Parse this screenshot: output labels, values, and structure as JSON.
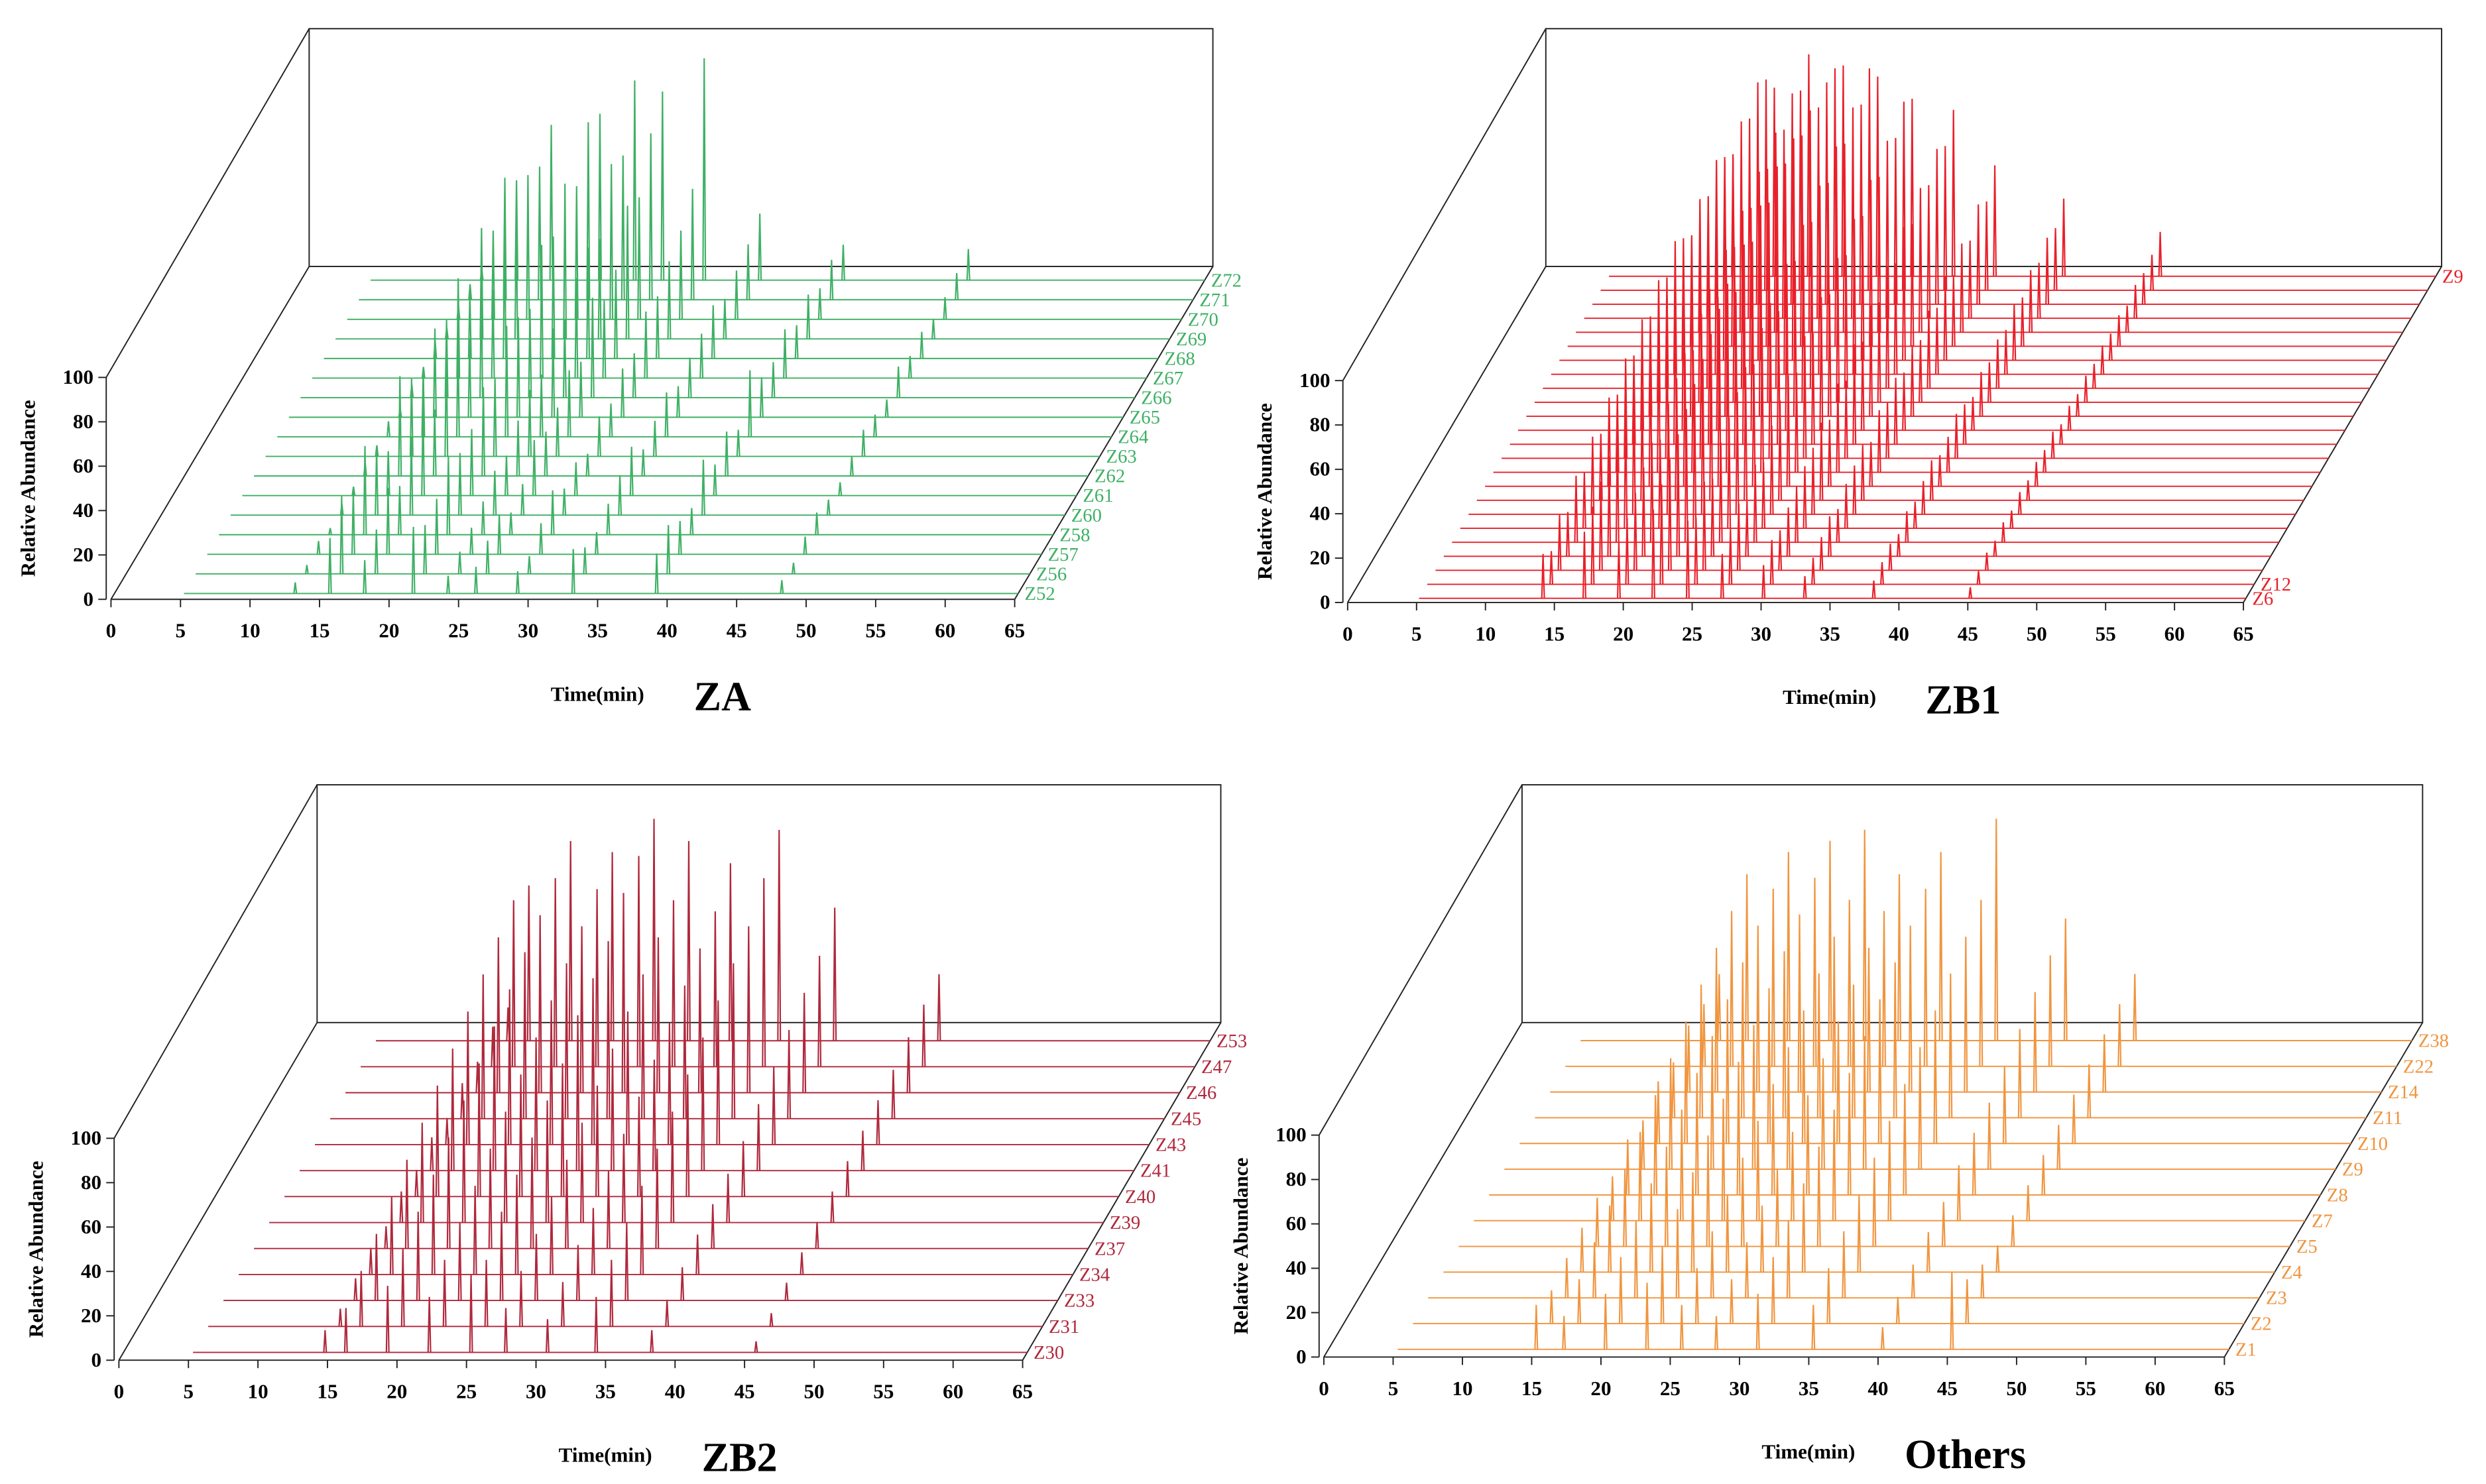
{
  "chart_data": [
    {
      "type": "waterfall",
      "title": "ZA",
      "x_label": "Time(min)",
      "y_label": "Relative Abundance",
      "color": "#3fb065",
      "xlim": [
        0,
        65
      ],
      "xticks": [
        0,
        5,
        10,
        15,
        20,
        25,
        30,
        35,
        40,
        45,
        50,
        55,
        60,
        65
      ],
      "ylim": [
        0,
        100
      ],
      "yticks": [
        0,
        20,
        40,
        60,
        80,
        100
      ],
      "x": [
        13,
        15.5,
        18,
        21.5,
        24,
        26,
        29,
        33,
        39,
        48
      ],
      "series": [
        {
          "name": "Z52",
          "values": [
            5,
            25,
            15,
            30,
            8,
            12,
            10,
            20,
            18,
            6
          ]
        },
        {
          "name": "Z56",
          "values": [
            4,
            35,
            20,
            22,
            10,
            15,
            8,
            12,
            22,
            5
          ]
        },
        {
          "name": "Z57",
          "values": [
            6,
            28,
            30,
            25,
            12,
            18,
            14,
            10,
            15,
            8
          ]
        },
        {
          "name": "Z58",
          "values": [
            3,
            40,
            22,
            35,
            15,
            10,
            20,
            14,
            12,
            10
          ]
        },
        {
          "name": "Z60",
          "values": [
            5,
            30,
            35,
            28,
            20,
            14,
            12,
            18,
            25,
            7
          ]
        },
        {
          "name": "Z61",
          "values": [
            4,
            20,
            40,
            30,
            18,
            25,
            15,
            22,
            14,
            6
          ]
        },
        {
          "name": "Z62",
          "values": [
            6,
            45,
            30,
            40,
            25,
            20,
            10,
            12,
            20,
            9
          ]
        },
        {
          "name": "Z63",
          "values": [
            5,
            35,
            50,
            35,
            30,
            22,
            18,
            16,
            12,
            12
          ]
        },
        {
          "name": "Z64",
          "values": [
            7,
            30,
            45,
            50,
            28,
            30,
            15,
            20,
            30,
            10
          ]
        },
        {
          "name": "Z65",
          "values": [
            4,
            40,
            35,
            45,
            40,
            25,
            22,
            14,
            18,
            8
          ]
        },
        {
          "name": "Z66",
          "values": [
            6,
            35,
            55,
            40,
            35,
            45,
            20,
            18,
            16,
            14
          ]
        },
        {
          "name": "Z67",
          "values": [
            5,
            45,
            40,
            60,
            45,
            35,
            30,
            20,
            22,
            10
          ]
        },
        {
          "name": "Z68",
          "values": [
            8,
            30,
            60,
            55,
            50,
            40,
            28,
            24,
            15,
            12
          ]
        },
        {
          "name": "Z69",
          "values": [
            5,
            50,
            55,
            70,
            45,
            60,
            35,
            18,
            20,
            9
          ]
        },
        {
          "name": "Z70",
          "values": [
            6,
            40,
            65,
            60,
            70,
            55,
            40,
            22,
            14,
            10
          ]
        },
        {
          "name": "Z71",
          "values": [
            7,
            55,
            60,
            80,
            65,
            75,
            50,
            25,
            18,
            12
          ]
        },
        {
          "name": "Z72",
          "values": [
            5,
            45,
            70,
            75,
            90,
            85,
            100,
            30,
            16,
            14
          ]
        }
      ]
    },
    {
      "type": "waterfall",
      "title": "ZB1",
      "x_label": "Time(min)",
      "y_label": "Relative Abundance",
      "color": "#e8202a",
      "xlim": [
        0,
        65
      ],
      "xticks": [
        0,
        5,
        10,
        15,
        20,
        25,
        30,
        35,
        40,
        45,
        50,
        55,
        60,
        65
      ],
      "ylim": [
        0,
        100
      ],
      "yticks": [
        0,
        20,
        40,
        60,
        80,
        100
      ],
      "x": [
        14,
        17,
        19.5,
        22,
        24.5,
        27,
        30,
        33,
        38,
        45
      ],
      "series": [
        {
          "name": "Z6",
          "values": [
            20,
            30,
            25,
            40,
            35,
            20,
            15,
            10,
            8,
            5
          ]
        },
        {
          "name": "Z12",
          "values": [
            15,
            35,
            30,
            45,
            30,
            25,
            20,
            12,
            10,
            6
          ]
        },
        {
          "name": null,
          "values": [
            25,
            40,
            35,
            50,
            40,
            30,
            18,
            15,
            12,
            8
          ]
        },
        {
          "name": null,
          "values": [
            20,
            45,
            40,
            55,
            35,
            25,
            22,
            18,
            10,
            7
          ]
        },
        {
          "name": null,
          "values": [
            30,
            50,
            45,
            60,
            45,
            35,
            25,
            15,
            14,
            9
          ]
        },
        {
          "name": null,
          "values": [
            25,
            55,
            40,
            65,
            50,
            30,
            28,
            20,
            12,
            8
          ]
        },
        {
          "name": null,
          "values": [
            35,
            60,
            50,
            70,
            55,
            40,
            30,
            22,
            15,
            10
          ]
        },
        {
          "name": null,
          "values": [
            30,
            50,
            55,
            75,
            60,
            45,
            35,
            25,
            18,
            9
          ]
        },
        {
          "name": null,
          "values": [
            40,
            65,
            60,
            80,
            55,
            50,
            30,
            20,
            14,
            11
          ]
        },
        {
          "name": null,
          "values": [
            35,
            70,
            55,
            85,
            65,
            45,
            40,
            28,
            16,
            10
          ]
        },
        {
          "name": null,
          "values": [
            45,
            60,
            65,
            75,
            70,
            55,
            35,
            25,
            20,
            12
          ]
        },
        {
          "name": null,
          "values": [
            40,
            75,
            70,
            90,
            60,
            50,
            45,
            30,
            18,
            9
          ]
        },
        {
          "name": null,
          "values": [
            50,
            70,
            60,
            85,
            75,
            60,
            40,
            26,
            15,
            11
          ]
        },
        {
          "name": null,
          "values": [
            45,
            80,
            75,
            95,
            70,
            55,
            50,
            32,
            20,
            10
          ]
        },
        {
          "name": null,
          "values": [
            55,
            75,
            70,
            90,
            80,
            65,
            45,
            28,
            18,
            12
          ]
        },
        {
          "name": null,
          "values": [
            50,
            85,
            80,
            100,
            75,
            60,
            55,
            35,
            22,
            11
          ]
        },
        {
          "name": null,
          "values": [
            60,
            80,
            75,
            95,
            85,
            70,
            50,
            30,
            20,
            13
          ]
        },
        {
          "name": null,
          "values": [
            55,
            90,
            85,
            100,
            80,
            65,
            60,
            38,
            25,
            12
          ]
        },
        {
          "name": null,
          "values": [
            50,
            85,
            80,
            95,
            90,
            75,
            55,
            32,
            22,
            14
          ]
        },
        {
          "name": null,
          "values": [
            60,
            95,
            90,
            100,
            85,
            70,
            65,
            40,
            28,
            12
          ]
        },
        {
          "name": null,
          "values": [
            55,
            90,
            85,
            95,
            95,
            80,
            60,
            35,
            25,
            15
          ]
        },
        {
          "name": null,
          "values": [
            65,
            100,
            95,
            100,
            90,
            75,
            70,
            45,
            30,
            14
          ]
        },
        {
          "name": null,
          "values": [
            60,
            95,
            90,
            100,
            100,
            85,
            65,
            40,
            28,
            16
          ]
        },
        {
          "name": "Z9",
          "values": [
            55,
            85,
            100,
            95,
            90,
            80,
            75,
            50,
            35,
            20
          ]
        }
      ]
    },
    {
      "type": "waterfall",
      "title": "ZB2",
      "x_label": "Time(min)",
      "y_label": "Relative Abundance",
      "color": "#b0283c",
      "xlim": [
        0,
        65
      ],
      "xticks": [
        0,
        5,
        10,
        15,
        20,
        25,
        30,
        35,
        40,
        45,
        50,
        55,
        60,
        65
      ],
      "ylim": [
        0,
        100
      ],
      "yticks": [
        0,
        20,
        40,
        60,
        80,
        100
      ],
      "x": [
        14.5,
        16,
        19,
        22,
        25,
        27.5,
        30.5,
        34,
        38,
        45.5
      ],
      "series": [
        {
          "name": "Z30",
          "values": [
            10,
            20,
            30,
            25,
            35,
            20,
            15,
            25,
            10,
            5
          ]
        },
        {
          "name": "Z31",
          "values": [
            8,
            25,
            35,
            30,
            30,
            25,
            20,
            30,
            12,
            6
          ]
        },
        {
          "name": "Z33",
          "values": [
            10,
            30,
            40,
            35,
            40,
            30,
            25,
            35,
            15,
            8
          ]
        },
        {
          "name": "Z34",
          "values": [
            12,
            35,
            45,
            40,
            45,
            35,
            30,
            40,
            18,
            10
          ]
        },
        {
          "name": "Z37",
          "values": [
            10,
            40,
            50,
            45,
            50,
            40,
            35,
            45,
            20,
            12
          ]
        },
        {
          "name": "Z39",
          "values": [
            14,
            45,
            55,
            50,
            55,
            45,
            40,
            50,
            22,
            14
          ]
        },
        {
          "name": "Z40",
          "values": [
            12,
            50,
            60,
            55,
            60,
            50,
            45,
            55,
            25,
            16
          ]
        },
        {
          "name": "Z41",
          "values": [
            15,
            55,
            65,
            60,
            70,
            55,
            50,
            60,
            30,
            18
          ]
        },
        {
          "name": "Z43",
          "values": [
            12,
            60,
            70,
            65,
            75,
            60,
            55,
            65,
            35,
            20
          ]
        },
        {
          "name": "Z45",
          "values": [
            16,
            65,
            75,
            70,
            80,
            65,
            60,
            70,
            40,
            22
          ]
        },
        {
          "name": "Z46",
          "values": [
            14,
            70,
            80,
            75,
            90,
            70,
            65,
            75,
            45,
            25
          ]
        },
        {
          "name": "Z47",
          "values": [
            18,
            75,
            85,
            80,
            95,
            75,
            70,
            85,
            50,
            28
          ]
        },
        {
          "name": "Z53",
          "values": [
            15,
            70,
            90,
            85,
            100,
            90,
            80,
            95,
            60,
            30
          ]
        }
      ]
    },
    {
      "type": "waterfall",
      "title": "Others",
      "x_label": "Time(min)",
      "y_label": "Relative Abundance",
      "color": "#f0953f",
      "xlim": [
        0,
        65
      ],
      "xticks": [
        0,
        5,
        10,
        15,
        20,
        25,
        30,
        35,
        40,
        45,
        50,
        55,
        60,
        65
      ],
      "ylim": [
        0,
        100
      ],
      "yticks": [
        0,
        20,
        40,
        60,
        80,
        100
      ],
      "x": [
        15,
        17,
        20,
        23,
        25.5,
        28,
        31,
        35,
        40,
        45
      ],
      "series": [
        {
          "name": "Z1",
          "values": [
            20,
            15,
            25,
            30,
            20,
            15,
            25,
            20,
            10,
            35
          ]
        },
        {
          "name": "Z2",
          "values": [
            15,
            20,
            30,
            35,
            25,
            20,
            30,
            25,
            12,
            20
          ]
        },
        {
          "name": "Z3",
          "values": [
            18,
            25,
            35,
            40,
            30,
            25,
            35,
            30,
            15,
            15
          ]
        },
        {
          "name": "Z4",
          "values": [
            20,
            30,
            40,
            45,
            35,
            30,
            40,
            35,
            18,
            12
          ]
        },
        {
          "name": "Z5",
          "values": [
            22,
            35,
            45,
            50,
            40,
            35,
            45,
            40,
            20,
            14
          ]
        },
        {
          "name": "Z7",
          "values": [
            20,
            40,
            50,
            55,
            45,
            40,
            50,
            45,
            25,
            16
          ]
        },
        {
          "name": "Z8",
          "values": [
            25,
            45,
            55,
            60,
            50,
            45,
            55,
            50,
            28,
            18
          ]
        },
        {
          "name": "Z9",
          "values": [
            22,
            50,
            60,
            65,
            55,
            50,
            60,
            55,
            30,
            20
          ]
        },
        {
          "name": "Z10",
          "values": [
            28,
            55,
            65,
            70,
            60,
            55,
            65,
            60,
            35,
            22
          ]
        },
        {
          "name": "Z11",
          "values": [
            25,
            60,
            70,
            75,
            65,
            60,
            70,
            65,
            40,
            24
          ]
        },
        {
          "name": "Z14",
          "values": [
            30,
            65,
            75,
            80,
            70,
            65,
            75,
            70,
            45,
            26
          ]
        },
        {
          "name": "Z22",
          "values": [
            28,
            70,
            80,
            85,
            75,
            70,
            80,
            75,
            50,
            28
          ]
        },
        {
          "name": "Z38",
          "values": [
            30,
            75,
            85,
            90,
            95,
            75,
            85,
            100,
            55,
            30
          ]
        }
      ]
    }
  ]
}
